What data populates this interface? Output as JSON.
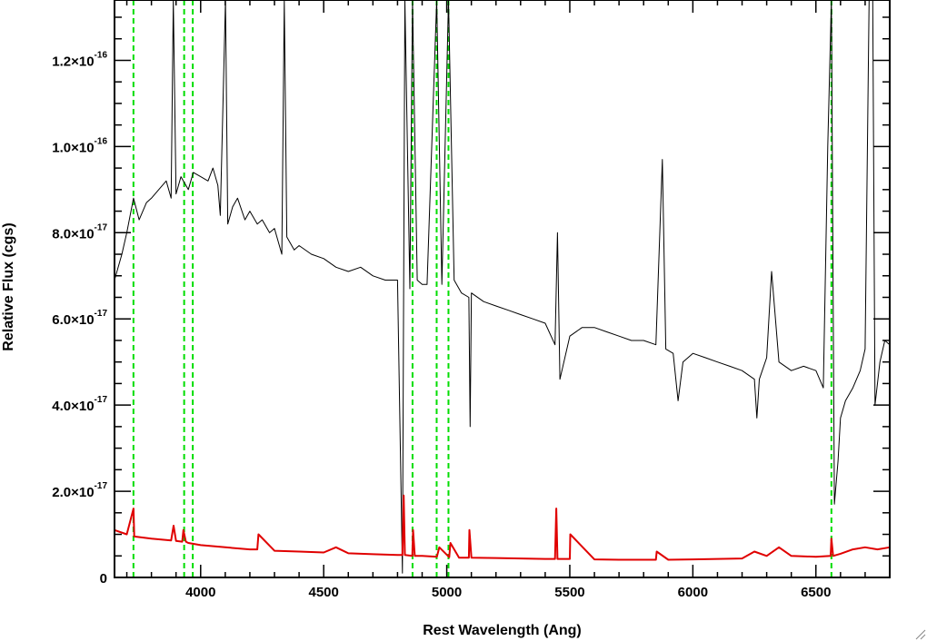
{
  "chart_data": {
    "type": "line",
    "title": "",
    "xlabel": "Rest Wavelength (Ang)",
    "ylabel": "Relative Flux (cgs)",
    "xlim": [
      3650,
      6800
    ],
    "ylim": [
      0,
      1.34e-16
    ],
    "grid": false,
    "legend": "none",
    "x_ticks": [
      {
        "value": 4000,
        "label": "4000"
      },
      {
        "value": 4500,
        "label": "4500"
      },
      {
        "value": 5000,
        "label": "5000"
      },
      {
        "value": 5500,
        "label": "5500"
      },
      {
        "value": 6000,
        "label": "6000"
      },
      {
        "value": 6500,
        "label": "6500"
      }
    ],
    "y_ticks": [
      {
        "value": 0,
        "mantissa": "0",
        "exponent": ""
      },
      {
        "value": 2e-17,
        "mantissa": "2.0×10",
        "exponent": "-17"
      },
      {
        "value": 4e-17,
        "mantissa": "4.0×10",
        "exponent": "-17"
      },
      {
        "value": 6e-17,
        "mantissa": "6.0×10",
        "exponent": "-17"
      },
      {
        "value": 8e-17,
        "mantissa": "8.0×10",
        "exponent": "-17"
      },
      {
        "value": 1e-16,
        "mantissa": "1.0×10",
        "exponent": "-16"
      },
      {
        "value": 1.2e-16,
        "mantissa": "1.2×10",
        "exponent": "-16"
      }
    ],
    "series": [
      {
        "color": "#000000",
        "x": [
          3650,
          3680,
          3700,
          3727,
          3750,
          3780,
          3800,
          3830,
          3860,
          3880,
          3889,
          3900,
          3920,
          3950,
          3970,
          4000,
          4030,
          4050,
          4070,
          4080,
          4101,
          4110,
          4130,
          4150,
          4180,
          4200,
          4230,
          4250,
          4280,
          4300,
          4330,
          4340,
          4350,
          4380,
          4400,
          4450,
          4500,
          4550,
          4600,
          4650,
          4700,
          4750,
          4800,
          4820,
          4830,
          4850,
          4861,
          4880,
          4900,
          4920,
          4959,
          4980,
          5007,
          5030,
          5060,
          5090,
          5095,
          5100,
          5150,
          5200,
          5250,
          5300,
          5350,
          5400,
          5440,
          5450,
          5460,
          5500,
          5550,
          5600,
          5650,
          5700,
          5750,
          5800,
          5850,
          5876,
          5890,
          5920,
          5940,
          5960,
          6000,
          6050,
          6100,
          6150,
          6200,
          6250,
          6260,
          6270,
          6300,
          6320,
          6350,
          6400,
          6450,
          6500,
          6530,
          6548,
          6563,
          6575,
          6590,
          6600,
          6620,
          6650,
          6680,
          6700,
          6716,
          6731,
          6740,
          6760,
          6780,
          6800
        ],
        "y": [
          6.9e-17,
          7.5e-17,
          8e-17,
          8.8e-17,
          8.3e-17,
          8.7e-17,
          8.8e-17,
          9e-17,
          9.2e-17,
          8.8e-17,
          1.34e-16,
          8.9e-17,
          9.3e-17,
          9e-17,
          9.4e-17,
          9.3e-17,
          9.2e-17,
          9.5e-17,
          9.1e-17,
          8.4e-17,
          1.34e-16,
          8.2e-17,
          8.6e-17,
          8.8e-17,
          8.3e-17,
          8.5e-17,
          8.2e-17,
          8.3e-17,
          8e-17,
          8.1e-17,
          7.5e-17,
          1.34e-16,
          7.9e-17,
          7.6e-17,
          7.7e-17,
          7.5e-17,
          7.4e-17,
          7.2e-17,
          7.1e-17,
          7.2e-17,
          7e-17,
          6.9e-17,
          6.9e-17,
          1e-18,
          1.34e-16,
          6.7e-17,
          1.34e-16,
          6.9e-17,
          6.8e-17,
          6.8e-17,
          1.34e-16,
          6.8e-17,
          1.34e-16,
          6.9e-17,
          6.6e-17,
          6.5e-17,
          3.5e-17,
          6.6e-17,
          6.4e-17,
          6.3e-17,
          6.2e-17,
          6.1e-17,
          6e-17,
          5.9e-17,
          5.4e-17,
          8e-17,
          4.6e-17,
          5.6e-17,
          5.8e-17,
          5.8e-17,
          5.7e-17,
          5.6e-17,
          5.5e-17,
          5.5e-17,
          5.4e-17,
          9.7e-17,
          5.3e-17,
          5.2e-17,
          4.1e-17,
          5e-17,
          5.2e-17,
          5.1e-17,
          5e-17,
          4.9e-17,
          4.8e-17,
          4.6e-17,
          3.7e-17,
          4.6e-17,
          5.1e-17,
          7.1e-17,
          5e-17,
          4.8e-17,
          4.9e-17,
          4.8e-17,
          4.4e-17,
          1e-16,
          1.34e-16,
          1.7e-17,
          2.7e-17,
          3.7e-17,
          4.1e-17,
          4.4e-17,
          4.8e-17,
          5.3e-17,
          1.34e-16,
          1.34e-16,
          4e-17,
          5e-17,
          5.5e-17,
          5.4e-17
        ]
      },
      {
        "color": "#e00000",
        "x": [
          3650,
          3700,
          3727,
          3730,
          3800,
          3880,
          3890,
          3900,
          3925,
          3930,
          3940,
          3950,
          4000,
          4100,
          4200,
          4230,
          4235,
          4300,
          4400,
          4500,
          4550,
          4600,
          4700,
          4800,
          4820,
          4825,
          4830,
          4860,
          4863,
          4870,
          4900,
          4960,
          4970,
          5010,
          5015,
          5050,
          5090,
          5092,
          5100,
          5200,
          5300,
          5400,
          5440,
          5445,
          5450,
          5500,
          5502,
          5600,
          5700,
          5800,
          5850,
          5853,
          5900,
          6000,
          6100,
          6200,
          6250,
          6300,
          6350,
          6400,
          6500,
          6560,
          6563,
          6570,
          6600,
          6650,
          6700,
          6750,
          6800
        ],
        "y": [
          1.1e-17,
          1e-17,
          1.6e-17,
          9.5e-18,
          9e-18,
          8.6e-18,
          1.2e-17,
          8.5e-18,
          8.3e-18,
          1.1e-17,
          8.3e-18,
          8e-18,
          7.5e-18,
          7e-18,
          6.5e-18,
          6.5e-18,
          1e-17,
          6.2e-18,
          6e-18,
          5.8e-18,
          7e-18,
          5.6e-18,
          5.4e-18,
          5.2e-18,
          5.2e-18,
          1.9e-17,
          5.2e-18,
          5e-18,
          1.1e-17,
          5e-18,
          5e-18,
          4.8e-18,
          7e-18,
          4.7e-18,
          8e-18,
          4.6e-18,
          4.6e-18,
          1.1e-17,
          4.6e-18,
          4.5e-18,
          4.4e-18,
          4.3e-18,
          4.3e-18,
          1.6e-17,
          4.3e-18,
          4.3e-18,
          1e-17,
          4.2e-18,
          4.1e-18,
          4.1e-18,
          4.1e-18,
          6e-18,
          4.1e-18,
          4.2e-18,
          4.3e-18,
          4.4e-18,
          6e-18,
          5e-18,
          7e-18,
          5e-18,
          4.8e-18,
          5e-18,
          9e-18,
          5e-18,
          5.5e-18,
          6.5e-18,
          7e-18,
          6.5e-18,
          7e-18
        ]
      }
    ],
    "annotations": {
      "vertical_lines": {
        "color": "#00dd00",
        "style": "dashed",
        "x": [
          3727,
          3933,
          3968,
          4861,
          4959,
          5007,
          6563
        ]
      }
    }
  }
}
